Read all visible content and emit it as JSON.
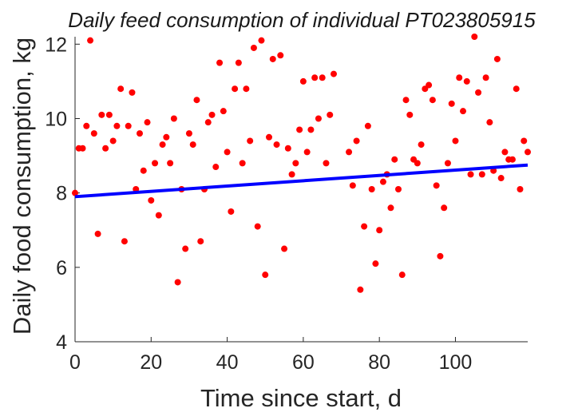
{
  "chart_data": {
    "type": "scatter",
    "title": "Daily feed consumption of individual PT023805915",
    "xlabel": "Time since start, d",
    "ylabel": "Daily food consumption, kg",
    "xlim": [
      0,
      119
    ],
    "ylim": [
      4,
      12.2
    ],
    "xticks": [
      0,
      20,
      40,
      60,
      80,
      100
    ],
    "yticks": [
      4,
      6,
      8,
      10,
      12
    ],
    "xtick_labels": [
      "0",
      "20",
      "40",
      "60",
      "80",
      "100"
    ],
    "ytick_labels": [
      "4",
      "6",
      "8",
      "10",
      "12"
    ],
    "grid": false,
    "colors": {
      "points": "#ff0000",
      "trend": "#0000ff",
      "axes": "#262626"
    },
    "series": [
      {
        "kind": "points",
        "x": [
          0,
          1,
          2,
          3,
          4,
          5,
          6,
          7,
          8,
          9,
          10,
          11,
          12,
          13,
          14,
          15,
          16,
          17,
          18,
          19,
          20,
          21,
          22,
          23,
          24,
          25,
          26,
          27,
          28,
          29,
          30,
          31,
          32,
          33,
          34,
          35,
          36,
          37,
          38,
          39,
          40,
          41,
          42,
          43,
          44,
          45,
          46,
          47,
          48,
          49,
          50,
          51,
          52,
          53,
          54,
          55,
          56,
          57,
          58,
          59,
          60,
          61,
          62,
          63,
          64,
          65,
          66,
          67,
          68,
          72,
          73,
          74,
          75,
          76,
          77,
          78,
          79,
          80,
          81,
          82,
          83,
          84,
          85,
          86,
          87,
          88,
          89,
          90,
          91,
          92,
          93,
          94,
          95,
          96,
          97,
          98,
          99,
          100,
          101,
          102,
          103,
          104,
          105,
          106,
          107,
          108,
          109,
          110,
          111,
          112,
          113,
          114,
          115,
          116,
          117,
          118,
          119
        ],
        "y": [
          8.0,
          9.2,
          9.2,
          9.8,
          12.1,
          9.6,
          6.9,
          10.1,
          9.2,
          10.1,
          9.4,
          9.8,
          10.8,
          6.7,
          9.8,
          10.7,
          8.1,
          9.6,
          8.6,
          9.9,
          7.8,
          8.8,
          7.4,
          9.3,
          9.5,
          8.8,
          10.0,
          5.6,
          8.1,
          6.5,
          9.6,
          9.3,
          10.5,
          6.7,
          8.1,
          9.9,
          10.1,
          8.7,
          11.5,
          10.2,
          9.1,
          7.5,
          10.8,
          11.5,
          8.8,
          10.8,
          9.4,
          11.9,
          7.1,
          12.1,
          5.8,
          9.5,
          11.6,
          9.3,
          11.7,
          6.5,
          9.2,
          8.5,
          8.8,
          9.7,
          11.0,
          9.1,
          9.7,
          11.1,
          10.0,
          11.1,
          8.8,
          10.1,
          11.2,
          9.1,
          8.2,
          9.4,
          5.4,
          7.1,
          9.8,
          8.1,
          6.1,
          7.0,
          8.3,
          8.5,
          7.6,
          8.9,
          8.1,
          5.8,
          10.5,
          10.1,
          8.9,
          8.8,
          9.3,
          10.8,
          10.9,
          10.5,
          8.2,
          6.3,
          7.6,
          8.8,
          10.4,
          9.4,
          11.1,
          10.2,
          11.0,
          8.5,
          12.2,
          10.7,
          8.5,
          11.1,
          9.9,
          8.6,
          11.6,
          8.4,
          9.1,
          8.9,
          8.9,
          10.8,
          8.1,
          9.4,
          9.1
        ]
      },
      {
        "kind": "trend-line",
        "x": [
          0,
          119
        ],
        "y": [
          7.9,
          8.75
        ]
      }
    ]
  }
}
